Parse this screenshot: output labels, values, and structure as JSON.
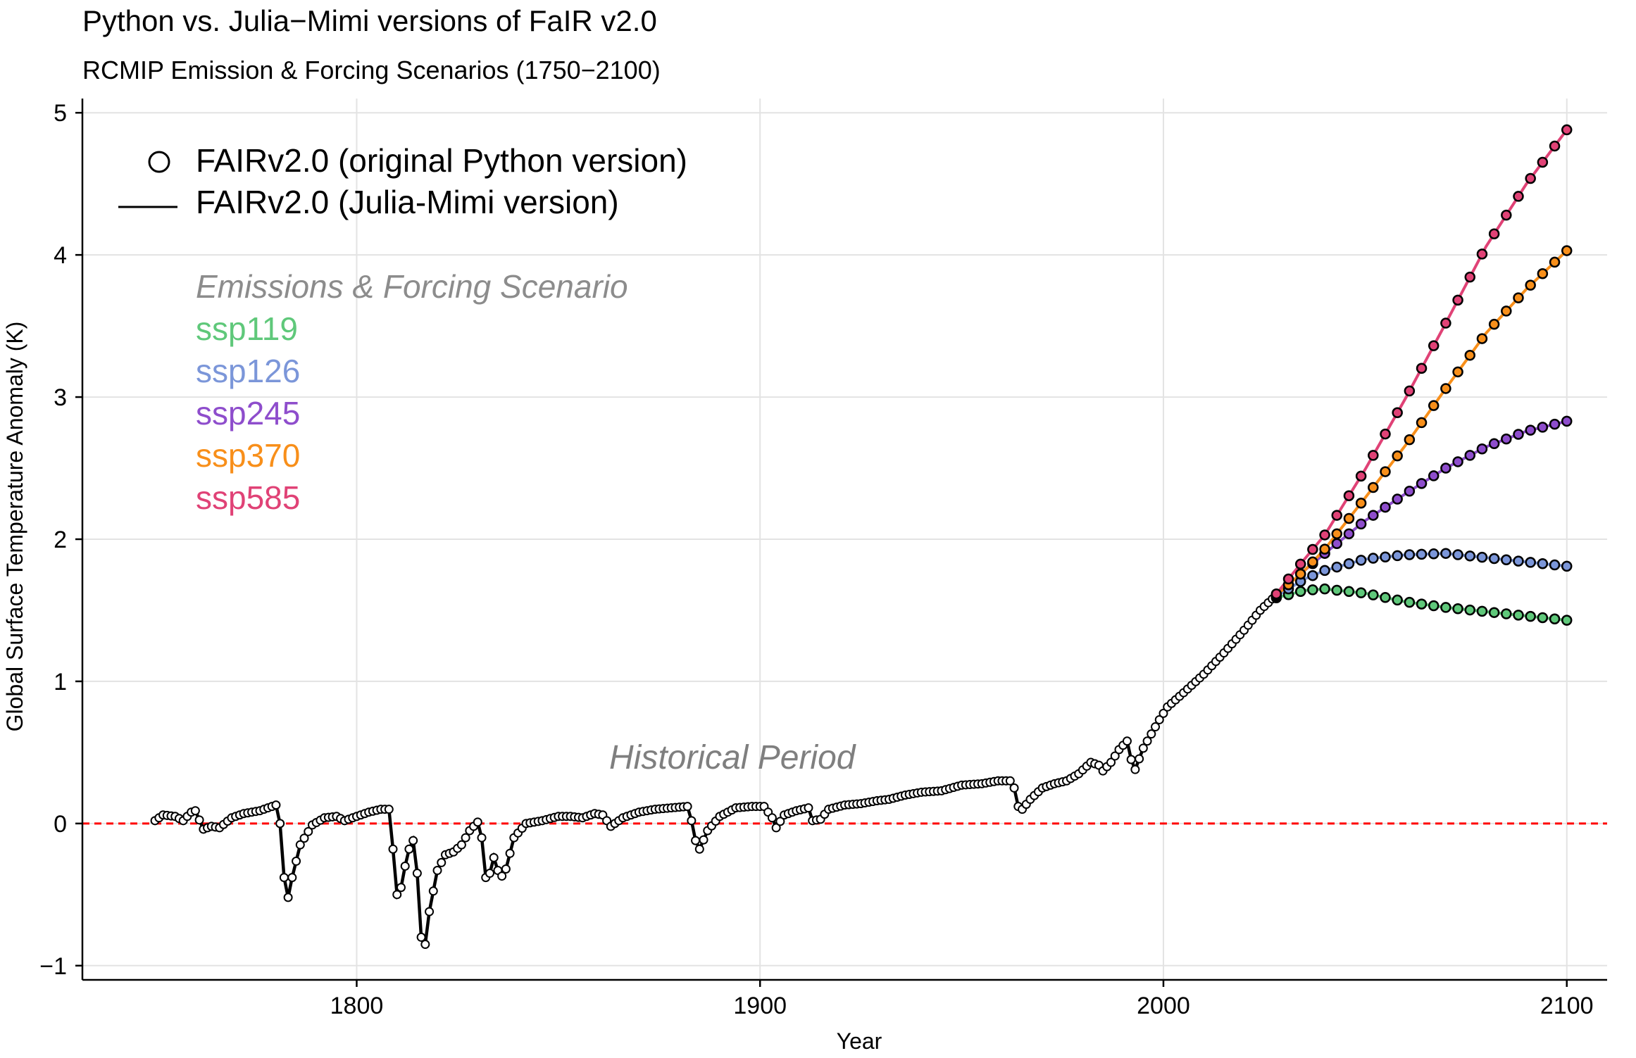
{
  "chart_data": {
    "type": "line",
    "title": "Python vs. Julia−Mimi versions of FaIR v2.0",
    "subtitle": "RCMIP Emission & Forcing Scenarios (1750−2100)",
    "xlabel": "Year",
    "ylabel": "Global Surface Temperature Anomaly (K)",
    "xlim": [
      1732,
      2110
    ],
    "ylim": [
      -1.1,
      5.1
    ],
    "x_ticks": [
      1800,
      1900,
      2000,
      2100
    ],
    "x_tick_labels": [
      "1800",
      "1900",
      "2000",
      "2100"
    ],
    "y_ticks": [
      -1,
      0,
      1,
      2,
      3,
      4,
      5
    ],
    "y_tick_labels": [
      "−1",
      "0",
      "1",
      "2",
      "3",
      "4",
      "5"
    ],
    "grid": true,
    "reference_line": {
      "y": 0,
      "color": "#ff0000",
      "style": "dashed"
    },
    "legend": {
      "placement": "top-left",
      "markers_label": "FAIRv2.0 (original Python version)",
      "line_label": "FAIRv2.0 (Julia-Mimi version)"
    },
    "scenario_legend_title": "Emissions & Forcing Scenario",
    "annotation": "Historical Period",
    "historical_keypoints": [
      [
        1750,
        0.02
      ],
      [
        1752,
        0.06
      ],
      [
        1755,
        0.05
      ],
      [
        1757,
        0.02
      ],
      [
        1759,
        0.08
      ],
      [
        1760,
        0.09
      ],
      [
        1762,
        -0.04
      ],
      [
        1764,
        -0.02
      ],
      [
        1766,
        -0.03
      ],
      [
        1769,
        0.04
      ],
      [
        1772,
        0.07
      ],
      [
        1776,
        0.09
      ],
      [
        1779,
        0.12
      ],
      [
        1780,
        0.13
      ],
      [
        1781,
        0.0
      ],
      [
        1782,
        -0.38
      ],
      [
        1783,
        -0.52
      ],
      [
        1784,
        -0.38
      ],
      [
        1786,
        -0.15
      ],
      [
        1789,
        -0.01
      ],
      [
        1792,
        0.04
      ],
      [
        1795,
        0.05
      ],
      [
        1797,
        0.02
      ],
      [
        1800,
        0.05
      ],
      [
        1803,
        0.08
      ],
      [
        1806,
        0.1
      ],
      [
        1808,
        0.1
      ],
      [
        1809,
        -0.18
      ],
      [
        1810,
        -0.5
      ],
      [
        1811,
        -0.45
      ],
      [
        1812,
        -0.3
      ],
      [
        1813,
        -0.18
      ],
      [
        1814,
        -0.12
      ],
      [
        1815,
        -0.35
      ],
      [
        1816,
        -0.8
      ],
      [
        1817,
        -0.85
      ],
      [
        1818,
        -0.62
      ],
      [
        1820,
        -0.33
      ],
      [
        1822,
        -0.22
      ],
      [
        1824,
        -0.2
      ],
      [
        1826,
        -0.15
      ],
      [
        1828,
        -0.05
      ],
      [
        1830,
        0.01
      ],
      [
        1831,
        -0.1
      ],
      [
        1832,
        -0.38
      ],
      [
        1833,
        -0.35
      ],
      [
        1834,
        -0.24
      ],
      [
        1835,
        -0.33
      ],
      [
        1836,
        -0.37
      ],
      [
        1837,
        -0.32
      ],
      [
        1839,
        -0.1
      ],
      [
        1842,
        0.0
      ],
      [
        1846,
        0.02
      ],
      [
        1850,
        0.05
      ],
      [
        1853,
        0.05
      ],
      [
        1856,
        0.04
      ],
      [
        1859,
        0.07
      ],
      [
        1861,
        0.06
      ],
      [
        1863,
        -0.02
      ],
      [
        1866,
        0.04
      ],
      [
        1870,
        0.08
      ],
      [
        1874,
        0.1
      ],
      [
        1878,
        0.11
      ],
      [
        1882,
        0.12
      ],
      [
        1883,
        0.02
      ],
      [
        1884,
        -0.12
      ],
      [
        1885,
        -0.18
      ],
      [
        1887,
        -0.05
      ],
      [
        1890,
        0.05
      ],
      [
        1894,
        0.11
      ],
      [
        1898,
        0.12
      ],
      [
        1901,
        0.12
      ],
      [
        1903,
        0.04
      ],
      [
        1904,
        -0.03
      ],
      [
        1906,
        0.06
      ],
      [
        1909,
        0.09
      ],
      [
        1912,
        0.11
      ],
      [
        1913,
        0.02
      ],
      [
        1915,
        0.03
      ],
      [
        1917,
        0.1
      ],
      [
        1921,
        0.13
      ],
      [
        1925,
        0.14
      ],
      [
        1929,
        0.16
      ],
      [
        1932,
        0.17
      ],
      [
        1936,
        0.2
      ],
      [
        1940,
        0.22
      ],
      [
        1945,
        0.23
      ],
      [
        1950,
        0.27
      ],
      [
        1955,
        0.28
      ],
      [
        1959,
        0.3
      ],
      [
        1962,
        0.3
      ],
      [
        1963,
        0.25
      ],
      [
        1964,
        0.12
      ],
      [
        1965,
        0.1
      ],
      [
        1967,
        0.17
      ],
      [
        1970,
        0.25
      ],
      [
        1973,
        0.28
      ],
      [
        1976,
        0.3
      ],
      [
        1979,
        0.35
      ],
      [
        1982,
        0.43
      ],
      [
        1984,
        0.41
      ],
      [
        1985,
        0.37
      ],
      [
        1987,
        0.43
      ],
      [
        1989,
        0.52
      ],
      [
        1991,
        0.58
      ],
      [
        1992,
        0.45
      ],
      [
        1993,
        0.38
      ],
      [
        1995,
        0.53
      ],
      [
        1997,
        0.63
      ],
      [
        1999,
        0.73
      ],
      [
        2001,
        0.82
      ],
      [
        2005,
        0.92
      ],
      [
        2010,
        1.05
      ],
      [
        2015,
        1.2
      ],
      [
        2020,
        1.36
      ],
      [
        2024,
        1.5
      ],
      [
        2027,
        1.58
      ]
    ],
    "series": [
      {
        "name": "ssp119",
        "color": "#5fc87a",
        "points": [
          [
            2027,
            1.58
          ],
          [
            2035,
            1.64
          ],
          [
            2040,
            1.65
          ],
          [
            2050,
            1.62
          ],
          [
            2060,
            1.56
          ],
          [
            2070,
            1.52
          ],
          [
            2080,
            1.49
          ],
          [
            2090,
            1.46
          ],
          [
            2100,
            1.43
          ]
        ]
      },
      {
        "name": "ssp126",
        "color": "#7b96d9",
        "points": [
          [
            2027,
            1.58
          ],
          [
            2035,
            1.72
          ],
          [
            2040,
            1.78
          ],
          [
            2050,
            1.86
          ],
          [
            2060,
            1.89
          ],
          [
            2070,
            1.9
          ],
          [
            2080,
            1.87
          ],
          [
            2090,
            1.84
          ],
          [
            2100,
            1.81
          ]
        ]
      },
      {
        "name": "ssp245",
        "color": "#8e4dcc",
        "points": [
          [
            2027,
            1.58
          ],
          [
            2035,
            1.78
          ],
          [
            2040,
            1.9
          ],
          [
            2050,
            2.13
          ],
          [
            2060,
            2.32
          ],
          [
            2070,
            2.5
          ],
          [
            2080,
            2.65
          ],
          [
            2090,
            2.76
          ],
          [
            2100,
            2.83
          ]
        ]
      },
      {
        "name": "ssp370",
        "color": "#f88f1a",
        "points": [
          [
            2027,
            1.58
          ],
          [
            2035,
            1.78
          ],
          [
            2040,
            1.93
          ],
          [
            2050,
            2.29
          ],
          [
            2060,
            2.66
          ],
          [
            2070,
            3.06
          ],
          [
            2080,
            3.45
          ],
          [
            2090,
            3.76
          ],
          [
            2100,
            4.03
          ]
        ]
      },
      {
        "name": "ssp585",
        "color": "#e04276",
        "points": [
          [
            2027,
            1.58
          ],
          [
            2035,
            1.86
          ],
          [
            2040,
            2.03
          ],
          [
            2050,
            2.49
          ],
          [
            2060,
            2.99
          ],
          [
            2070,
            3.52
          ],
          [
            2080,
            4.06
          ],
          [
            2090,
            4.5
          ],
          [
            2100,
            4.88
          ]
        ]
      }
    ]
  }
}
